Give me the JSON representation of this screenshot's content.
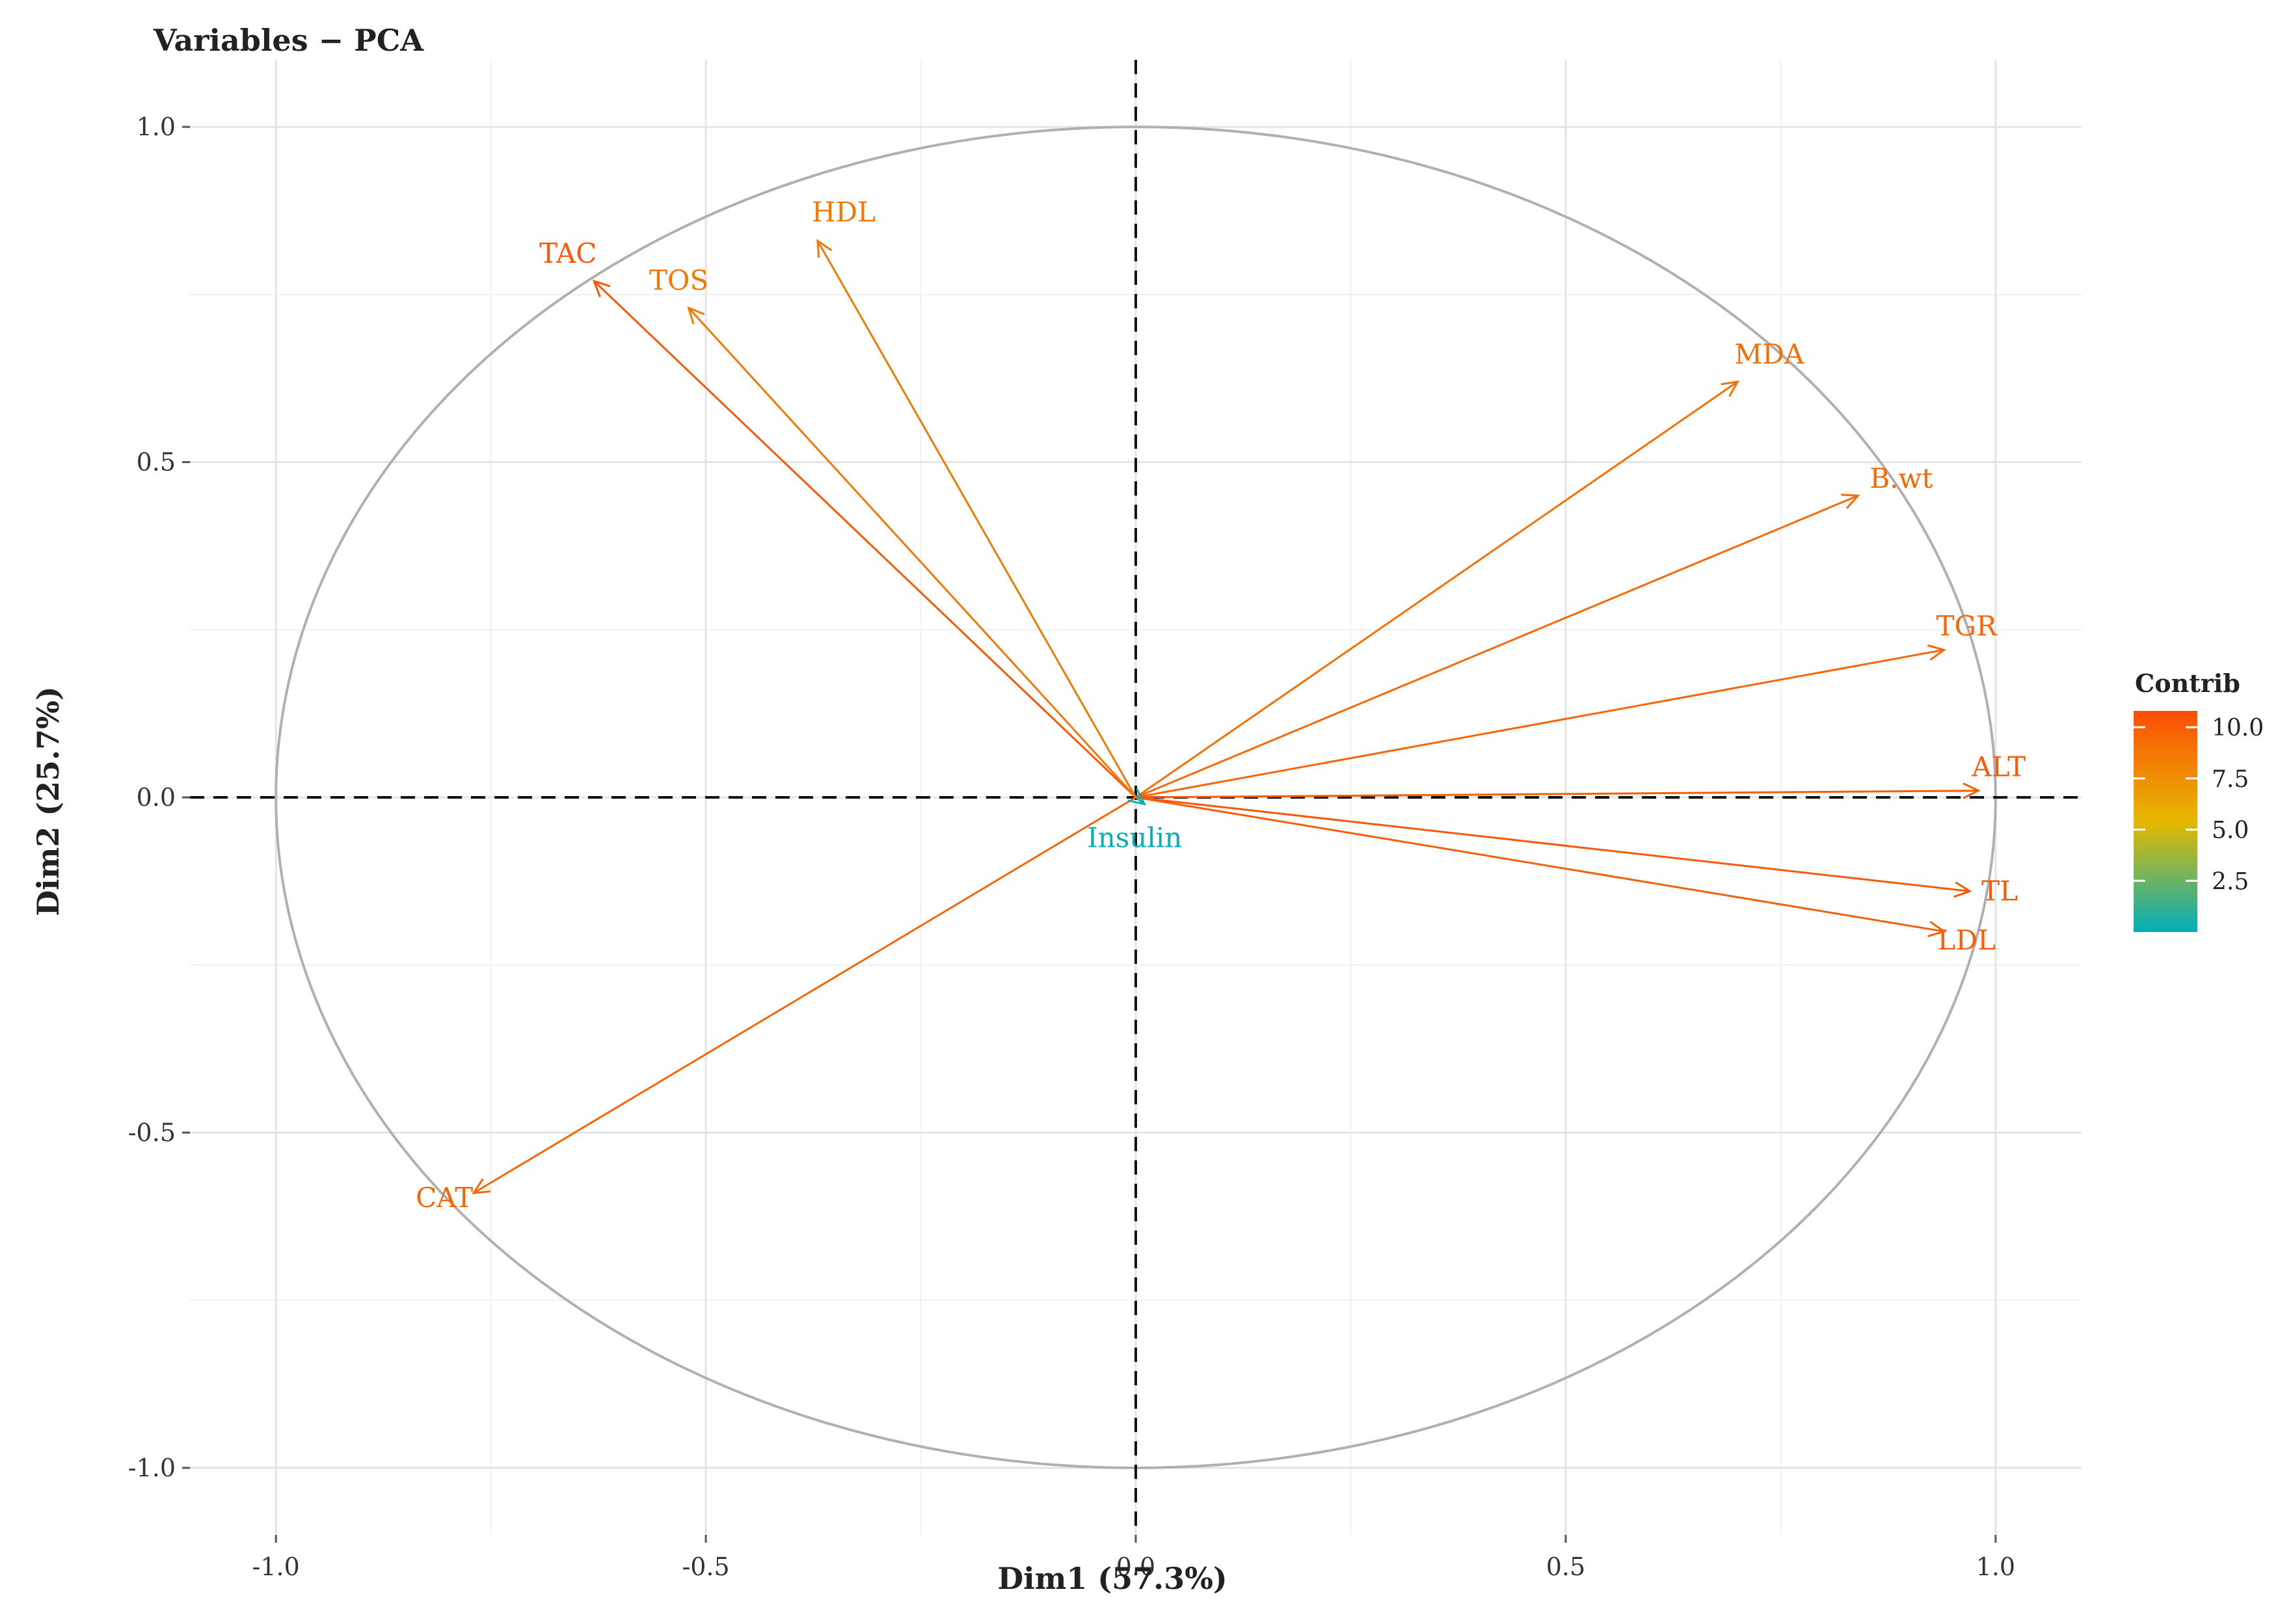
{
  "title": "Variables − PCA",
  "chart_data": {
    "type": "scatter",
    "subtype": "pca-variable-correlation-circle",
    "title": "Variables − PCA",
    "xlabel": "Dim1 (57.3%)",
    "ylabel": "Dim2 (25.7%)",
    "xlim": [
      -1.1,
      1.1
    ],
    "ylim": [
      -1.1,
      1.1
    ],
    "xticks": [
      -1.0,
      -0.5,
      0.0,
      0.5,
      1.0
    ],
    "xtick_labels": [
      "-1.0",
      "-0.5",
      "0.0",
      "0.5",
      "1.0"
    ],
    "yticks": [
      -1.0,
      -0.5,
      0.0,
      0.5,
      1.0
    ],
    "ytick_labels": [
      "-1.0",
      "-0.5",
      "0.0",
      "0.5",
      "1.0"
    ],
    "grid": true,
    "unit_circle": true,
    "zero_lines": "dashed",
    "variables": [
      {
        "name": "TAC",
        "x": -0.63,
        "y": 0.77,
        "contrib": 10.3
      },
      {
        "name": "TOS",
        "x": -0.52,
        "y": 0.73,
        "contrib": 8.6
      },
      {
        "name": "HDL",
        "x": -0.37,
        "y": 0.83,
        "contrib": 8.6
      },
      {
        "name": "MDA",
        "x": 0.7,
        "y": 0.62,
        "contrib": 9.1
      },
      {
        "name": "B.wt",
        "x": 0.84,
        "y": 0.45,
        "contrib": 9.4
      },
      {
        "name": "TGR",
        "x": 0.94,
        "y": 0.22,
        "contrib": 9.7
      },
      {
        "name": "ALT",
        "x": 0.98,
        "y": 0.01,
        "contrib": 10.1
      },
      {
        "name": "TL",
        "x": 0.97,
        "y": -0.14,
        "contrib": 10.3
      },
      {
        "name": "LDL",
        "x": 0.94,
        "y": -0.2,
        "contrib": 10.0
      },
      {
        "name": "CAT",
        "x": -0.77,
        "y": -0.59,
        "contrib": 9.6
      },
      {
        "name": "Insulin",
        "x": 0.01,
        "y": -0.01,
        "contrib": 0.1
      }
    ],
    "legend": {
      "title": "Contrib",
      "position": "right",
      "ticks": [
        10.0,
        7.5,
        5.0,
        2.5
      ],
      "tick_labels": [
        "10.0",
        "7.5",
        "5.0",
        "2.5"
      ],
      "range": [
        0.0,
        10.8
      ],
      "colors": [
        "#00AFBB",
        "#E7B800",
        "#FC4E07"
      ]
    }
  }
}
